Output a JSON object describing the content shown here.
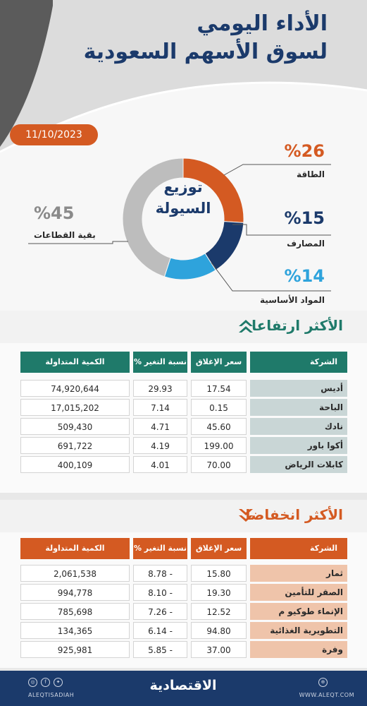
{
  "header": {
    "title_line1": "الأداء اليومي",
    "title_line2": "لسوق الأسهم السعودية",
    "date": "11/10/2023"
  },
  "chart_data": {
    "type": "pie",
    "title": "توزيع السيولة",
    "title_line1": "توزيع",
    "title_line2": "السيولة",
    "slices": [
      {
        "label": "الطاقة",
        "value": 26,
        "value_label": "%26",
        "color": "#d45a22"
      },
      {
        "label": "المصارف",
        "value": 15,
        "value_label": "%15",
        "color": "#1b3a6b"
      },
      {
        "label": "المواد الأساسية",
        "value": 14,
        "value_label": "%14",
        "color": "#2ea3dc"
      },
      {
        "label": "بقية القطاعات",
        "value": 45,
        "value_label": "%45",
        "color": "#bdbdbd"
      }
    ]
  },
  "gainers": {
    "title": "الأكثر ارتفاعا",
    "header_color": "#1f7a6a",
    "columns": {
      "company": "الشركة",
      "close": "سعر الإغلاق",
      "change": "نسبة التغير %",
      "volume": "الكمية المتداولة"
    },
    "rows": [
      {
        "company": "أديس",
        "close": "17.54",
        "change": "29.93",
        "volume": "74,920,644"
      },
      {
        "company": "الباحة",
        "close": "0.15",
        "change": "7.14",
        "volume": "17,015,202"
      },
      {
        "company": "نادك",
        "close": "45.60",
        "change": "4.71",
        "volume": "509,430"
      },
      {
        "company": "أكوا باور",
        "close": "199.00",
        "change": "4.19",
        "volume": "691,722"
      },
      {
        "company": "كابلات الرياض",
        "close": "70.00",
        "change": "4.01",
        "volume": "400,109"
      }
    ]
  },
  "losers": {
    "title": "الأكثر انخفاضا",
    "header_color": "#d45a22",
    "columns": {
      "company": "الشركة",
      "close": "سعر الإغلاق",
      "change": "نسبة التغير %",
      "volume": "الكمية المتداولة"
    },
    "rows": [
      {
        "company": "ثمار",
        "close": "15.80",
        "change": "8.78 -",
        "volume": "2,061,538"
      },
      {
        "company": "الصقر للتأمين",
        "close": "19.30",
        "change": "8.10 -",
        "volume": "994,778"
      },
      {
        "company": "الإنماء طوكيو م",
        "close": "12.52",
        "change": "7.26 -",
        "volume": "785,698"
      },
      {
        "company": "التطويرية الغذائية",
        "close": "94.80",
        "change": "6.14 -",
        "volume": "134,365"
      },
      {
        "company": "وفرة",
        "close": "37.00",
        "change": "5.85 -",
        "volume": "925,981"
      }
    ]
  },
  "footer": {
    "brand": "الاقتصادية",
    "handle": "ALEQTISADIAH",
    "site": "WWW.ALEQT.COM"
  }
}
